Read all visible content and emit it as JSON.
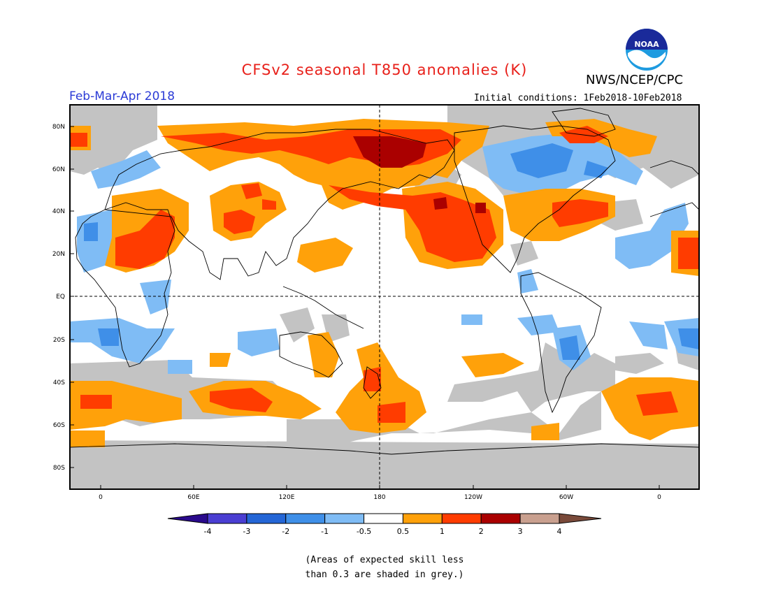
{
  "title": "CFSv2 seasonal T850 anomalies (K)",
  "agency": "NWS/NCEP/CPC",
  "logo_text": "NOAA",
  "season": "Feb-Mar-Apr 2018",
  "initial_conditions": "Initial conditions: 1Feb2018-10Feb2018",
  "lat_labels": [
    "80N",
    "60N",
    "40N",
    "20N",
    "EQ",
    "20S",
    "40S",
    "60S",
    "80S"
  ],
  "lon_labels": [
    "0",
    "60E",
    "120E",
    "180",
    "120W",
    "60W",
    "0"
  ],
  "colorbar": {
    "labels": [
      "-4",
      "-3",
      "-2",
      "-1",
      "-0.5",
      "0.5",
      "1",
      "2",
      "3",
      "4"
    ],
    "colors": [
      "#2a0a8c",
      "#4a3ed2",
      "#2466d6",
      "#3f8fe8",
      "#7fbcf5",
      "#ffffff",
      "#ffa10a",
      "#ff3c00",
      "#aa0000",
      "#c9a08f",
      "#7a4a3a"
    ]
  },
  "caption_line1": "(Areas of expected skill less",
  "caption_line2": "than 0.3 are shaded in grey.)"
}
